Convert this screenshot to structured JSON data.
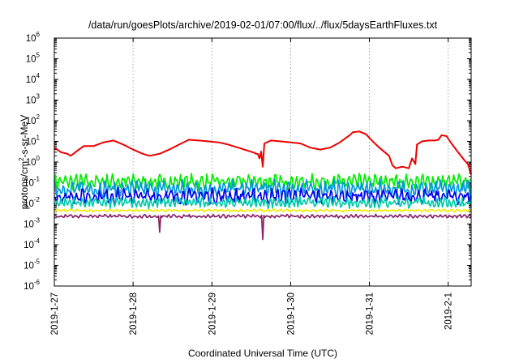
{
  "title": "/data/run/goesPlots/archive/2019-02-01/07:00/flux/../flux/5daysEarthFluxes.txt",
  "xlabel": "Coordinated Universal Time (UTC)",
  "ylabel": {
    "before": "protons/cm",
    "sup": "2",
    "after": "-s-sr-MeV"
  },
  "chart_data": {
    "type": "line",
    "title": "/data/run/goesPlots/archive/2019-02-01/07:00/flux/../flux/5daysEarthFluxes.txt",
    "xlabel": "Coordinated Universal Time (UTC)",
    "ylabel": "protons/cm2-s-sr-MeV",
    "yscale": "log",
    "ylim": [
      1e-06,
      1000000.0
    ],
    "ytick_labels": [
      {
        "base": "10",
        "exp": "-6"
      },
      {
        "base": "10",
        "exp": "-5"
      },
      {
        "base": "10",
        "exp": "-4"
      },
      {
        "base": "10",
        "exp": "-3"
      },
      {
        "base": "10",
        "exp": "-2"
      },
      {
        "base": "10",
        "exp": "-1"
      },
      {
        "base": "10",
        "exp": "0"
      },
      {
        "base": "10",
        "exp": "1"
      },
      {
        "base": "10",
        "exp": "2"
      },
      {
        "base": "10",
        "exp": "3"
      },
      {
        "base": "10",
        "exp": "4"
      },
      {
        "base": "10",
        "exp": "5"
      },
      {
        "base": "10",
        "exp": "6"
      }
    ],
    "xlim": [
      "2019-01-27T00:00",
      "2019-02-01T07:00"
    ],
    "xtick_labels": [
      "2019-1-27",
      "2019-1-28",
      "2019-1-29",
      "2019-1-30",
      "2019-1-31",
      "2019-2-1"
    ],
    "grid": true,
    "series": [
      {
        "color": "#ee0000",
        "points": [
          [
            "2019-01-27T00:00",
            5
          ],
          [
            "2019-01-27T02:00",
            3
          ],
          [
            "2019-01-27T04:00",
            2.5
          ],
          [
            "2019-01-27T05:00",
            2
          ],
          [
            "2019-01-27T07:00",
            3.5
          ],
          [
            "2019-01-27T09:00",
            6
          ],
          [
            "2019-01-27T12:00",
            6
          ],
          [
            "2019-01-27T15:00",
            9
          ],
          [
            "2019-01-27T18:00",
            11
          ],
          [
            "2019-01-27T21:00",
            7
          ],
          [
            "2019-01-28T00:00",
            4
          ],
          [
            "2019-01-28T03:00",
            2.5
          ],
          [
            "2019-01-28T05:00",
            2
          ],
          [
            "2019-01-28T08:00",
            2.5
          ],
          [
            "2019-01-28T11:00",
            4
          ],
          [
            "2019-01-28T14:00",
            7
          ],
          [
            "2019-01-28T17:00",
            12
          ],
          [
            "2019-01-28T20:00",
            11
          ],
          [
            "2019-01-28T23:00",
            10
          ],
          [
            "2019-01-29T02:00",
            9
          ],
          [
            "2019-01-29T05:00",
            7
          ],
          [
            "2019-01-29T08:00",
            5
          ],
          [
            "2019-01-29T11:00",
            3.5
          ],
          [
            "2019-01-29T13:00",
            2.8
          ],
          [
            "2019-01-29T14:00",
            2.5
          ],
          [
            "2019-01-29T15:00",
            3.2
          ],
          [
            "2019-01-29T13:30",
            2.5
          ],
          [
            "2019-01-29T14:30",
            1.5
          ],
          [
            "2019-01-29T15:30",
            0.6
          ],
          [
            "2019-01-29T16:00",
            8
          ],
          [
            "2019-01-29T18:00",
            11
          ],
          [
            "2019-01-29T21:00",
            10
          ],
          [
            "2019-01-30T00:00",
            9
          ],
          [
            "2019-01-30T03:00",
            8
          ],
          [
            "2019-01-30T06:00",
            5
          ],
          [
            "2019-01-30T09:00",
            4
          ],
          [
            "2019-01-30T12:00",
            5
          ],
          [
            "2019-01-30T15:00",
            9
          ],
          [
            "2019-01-30T18:00",
            20
          ],
          [
            "2019-01-30T19:00",
            28
          ],
          [
            "2019-01-30T21:00",
            30
          ],
          [
            "2019-01-30T23:00",
            22
          ],
          [
            "2019-01-31T01:00",
            10
          ],
          [
            "2019-01-31T03:00",
            5
          ],
          [
            "2019-01-31T06:00",
            2
          ],
          [
            "2019-01-31T07:00",
            0.7
          ],
          [
            "2019-01-31T08:00",
            0.5
          ],
          [
            "2019-01-31T10:00",
            0.6
          ],
          [
            "2019-01-31T12:00",
            0.5
          ],
          [
            "2019-01-31T13:00",
            1.5
          ],
          [
            "2019-01-31T14:00",
            0.8
          ],
          [
            "2019-01-31T14:30",
            7
          ],
          [
            "2019-01-31T16:00",
            10
          ],
          [
            "2019-01-31T18:00",
            11
          ],
          [
            "2019-01-31T20:00",
            11
          ],
          [
            "2019-01-31T21:00",
            12
          ],
          [
            "2019-01-31T22:00",
            20
          ],
          [
            "2019-01-31T23:30",
            18
          ],
          [
            "2019-02-01T01:00",
            8
          ],
          [
            "2019-02-01T03:00",
            3
          ],
          [
            "2019-02-01T05:00",
            1.2
          ],
          [
            "2019-02-01T06:00",
            0.8
          ],
          [
            "2019-02-01T07:00",
            0.25
          ]
        ]
      },
      {
        "color": "#00ee00",
        "base": 0.11,
        "amp": 0.35,
        "period_h": 1.6
      },
      {
        "color": "#0099dd",
        "base": 0.05,
        "amp": 0.4,
        "period_h": 1.4
      },
      {
        "color": "#0000ee",
        "base": 0.022,
        "amp": 0.35,
        "period_h": 1.8
      },
      {
        "color": "#00ccaa",
        "base": 0.011,
        "amp": 0.25,
        "period_h": 1.3
      },
      {
        "color": "#eeee00",
        "base": 0.0045,
        "amp": 0.06,
        "period_h": 2.0
      },
      {
        "color": "#882266",
        "base": 0.0024,
        "amp": 0.08,
        "period_h": 1.5,
        "dips": [
          [
            "2019-01-28T08:00",
            0.0004
          ],
          [
            "2019-01-29T15:30",
            0.00018
          ]
        ]
      }
    ]
  }
}
